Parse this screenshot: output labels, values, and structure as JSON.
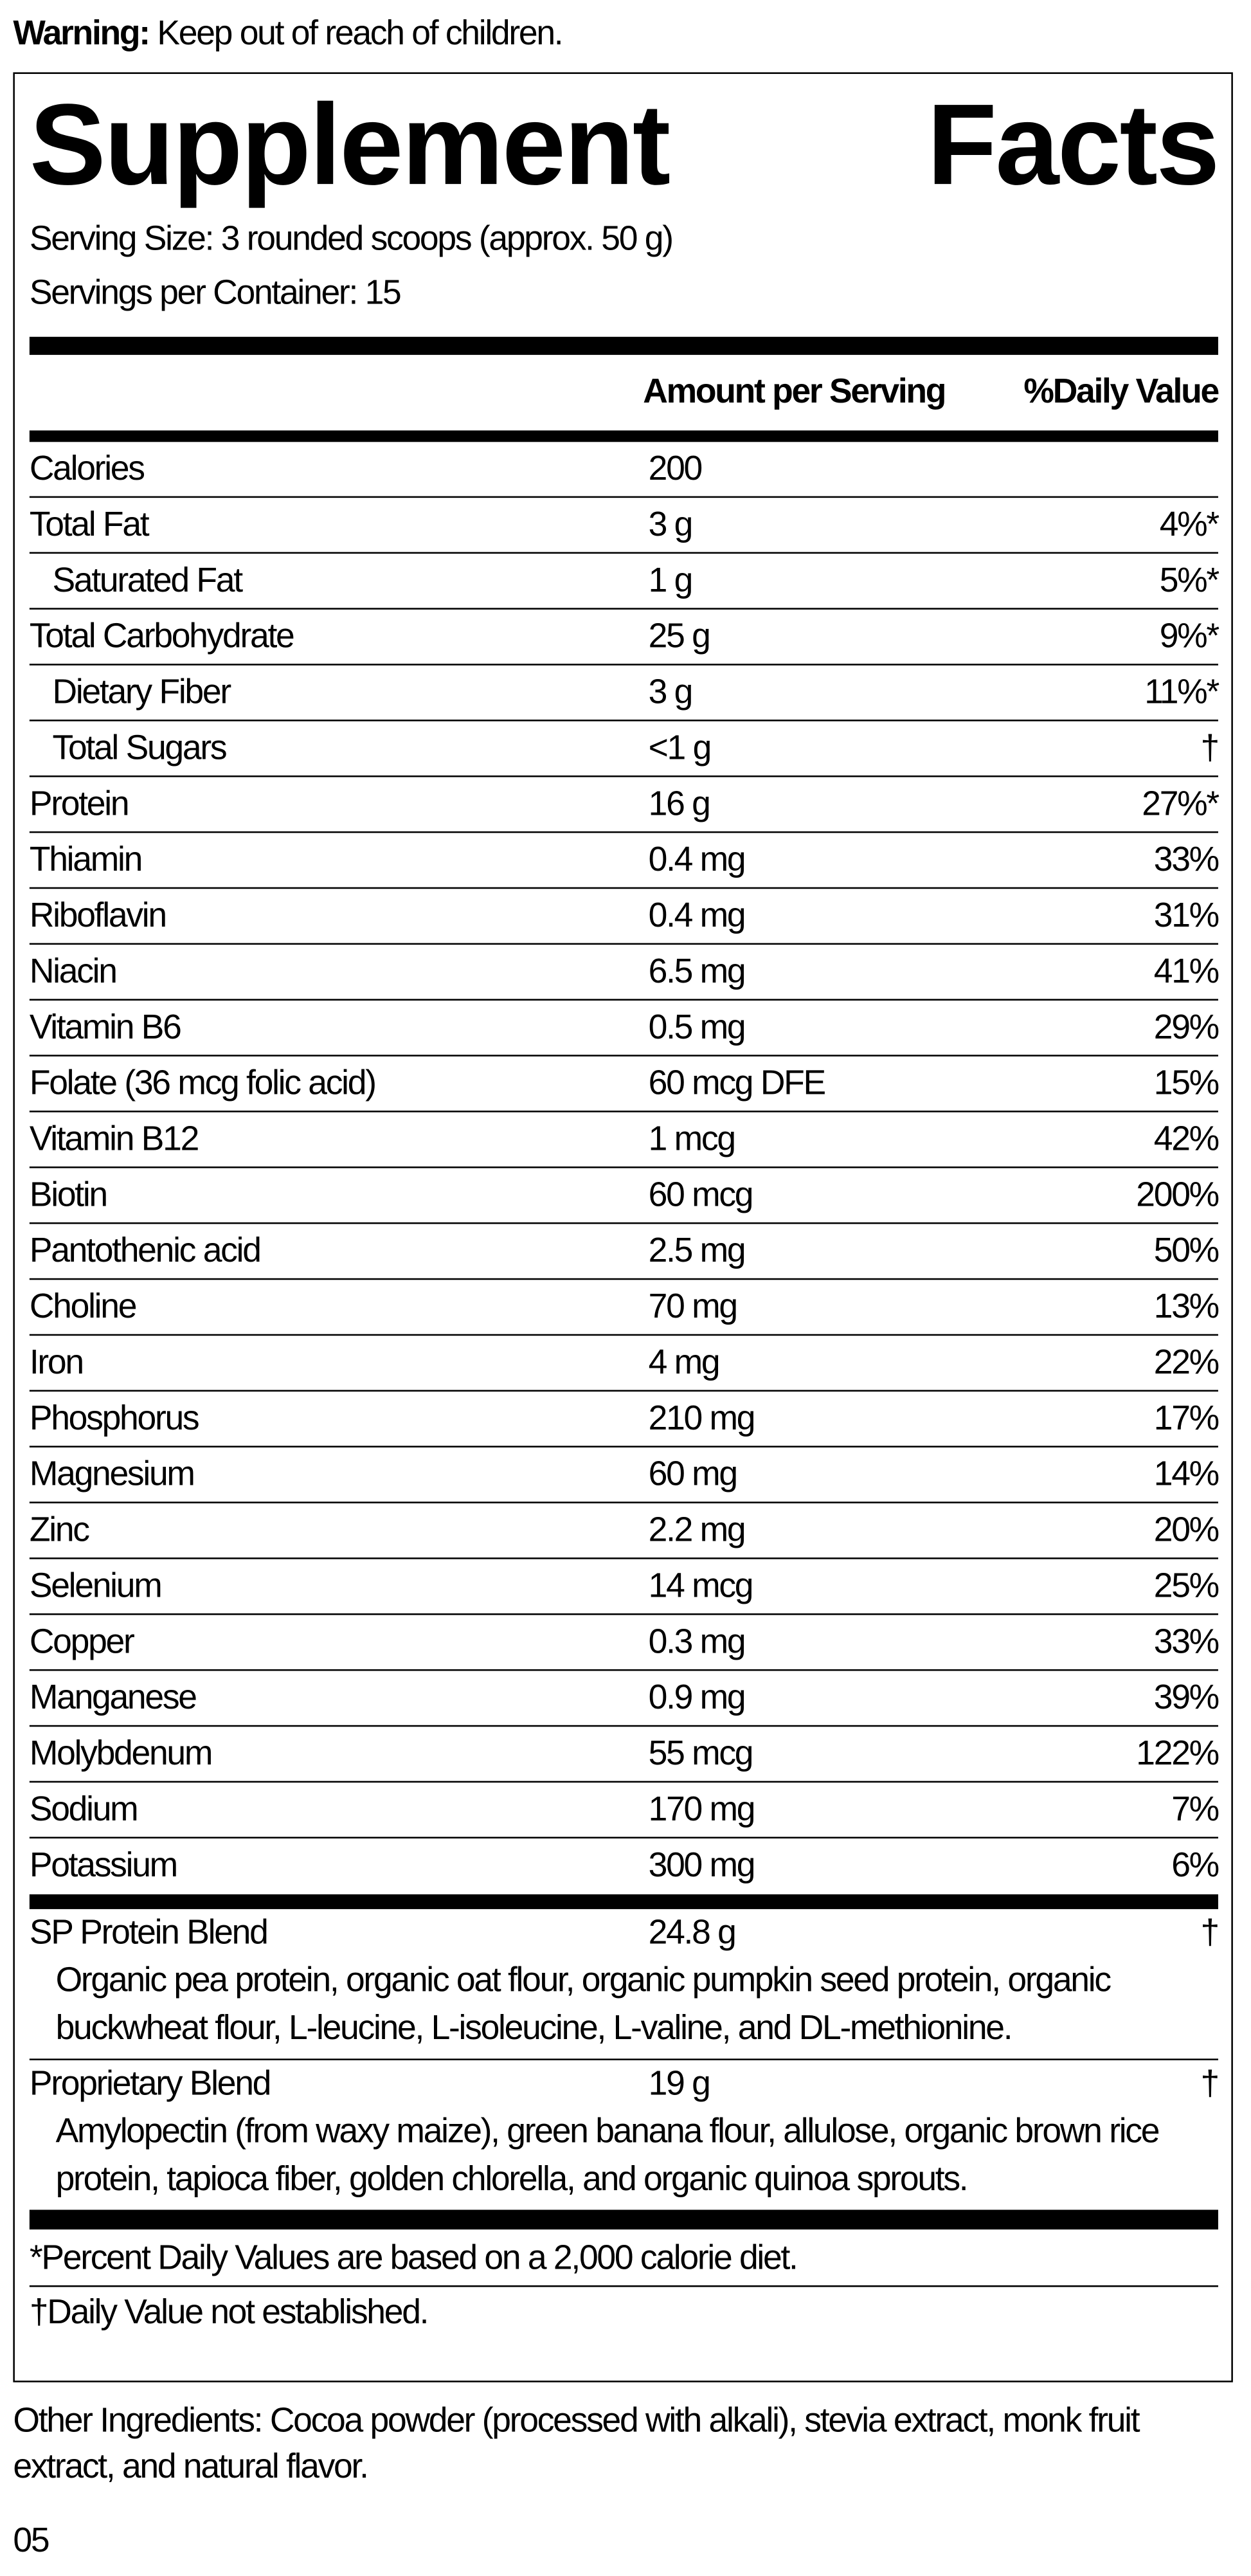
{
  "warning": {
    "label": "Warning:",
    "text": "Keep out of reach of children."
  },
  "title": "Supplement Facts",
  "serving_size": "Serving Size: 3 rounded scoops (approx. 50 g)",
  "servings_per_container": "Servings per Container: 15",
  "header": {
    "amount": "Amount per Serving",
    "daily_value": "%Daily Value"
  },
  "rows": [
    {
      "name": "Calories",
      "amount": "200"
    },
    {
      "name": "Total Fat",
      "amount": "3 g",
      "daily_value": "4%*"
    },
    {
      "name": "Saturated Fat",
      "amount": "1 g",
      "daily_value": "5%*",
      "indent": true
    },
    {
      "name": "Total Carbohydrate",
      "amount": "25 g",
      "daily_value": "9%*"
    },
    {
      "name": "Dietary Fiber",
      "amount": "3 g",
      "daily_value": "11%*",
      "indent": true
    },
    {
      "name": "Total Sugars",
      "amount": "<1 g",
      "daily_value": "†",
      "indent": true
    },
    {
      "name": "Protein",
      "amount": "16 g",
      "daily_value": "27%*"
    },
    {
      "name": "Thiamin",
      "amount": "0.4 mg",
      "daily_value": "33%"
    },
    {
      "name": "Riboflavin",
      "amount": "0.4 mg",
      "daily_value": "31%"
    },
    {
      "name": "Niacin",
      "amount": "6.5 mg",
      "daily_value": "41%"
    },
    {
      "name": "Vitamin B6",
      "amount": "0.5 mg",
      "daily_value": "29%"
    },
    {
      "name": "Folate (36 mcg folic acid)",
      "amount": "60 mcg DFE",
      "daily_value": "15%"
    },
    {
      "name": "Vitamin B12",
      "amount": "1 mcg",
      "daily_value": "42%"
    },
    {
      "name": "Biotin",
      "amount": "60 mcg",
      "daily_value": "200%"
    },
    {
      "name": "Pantothenic acid",
      "amount": "2.5 mg",
      "daily_value": "50%"
    },
    {
      "name": "Choline",
      "amount": "70 mg",
      "daily_value": "13%"
    },
    {
      "name": "Iron",
      "amount": "4 mg",
      "daily_value": "22%"
    },
    {
      "name": "Phosphorus",
      "amount": "210 mg",
      "daily_value": "17%"
    },
    {
      "name": "Magnesium",
      "amount": "60 mg",
      "daily_value": "14%"
    },
    {
      "name": "Zinc",
      "amount": "2.2 mg",
      "daily_value": "20%"
    },
    {
      "name": "Selenium",
      "amount": "14 mcg",
      "daily_value": "25%"
    },
    {
      "name": "Copper",
      "amount": "0.3 mg",
      "daily_value": "33%"
    },
    {
      "name": "Manganese",
      "amount": "0.9 mg",
      "daily_value": "39%"
    },
    {
      "name": "Molybdenum",
      "amount": "55 mcg",
      "daily_value": "122%"
    },
    {
      "name": "Sodium",
      "amount": "170 mg",
      "daily_value": "7%"
    },
    {
      "name": "Potassium",
      "amount": "300 mg",
      "daily_value": "6%"
    }
  ],
  "blends": [
    {
      "name": "SP Protein Blend",
      "amount": "24.8 g",
      "daily_value": "†",
      "ingredients": "Organic pea protein, organic oat flour, organic pumpkin seed protein, organic buckwheat flour, L-leucine, L-isoleucine, L-valine, and DL-methionine."
    },
    {
      "name": "Proprietary Blend",
      "amount": "19 g",
      "daily_value": "†",
      "ingredients": "Amylopectin (from waxy maize), green banana flour, allulose, organic brown rice protein, tapioca fiber, golden chlorella, and organic quinoa sprouts."
    }
  ],
  "footnotes": [
    "*Percent Daily Values are based on a 2,000 calorie diet.",
    "†Daily Value not established."
  ],
  "other_ingredients": "Other Ingredients: Cocoa powder (processed with alkali), stevia extract, monk fruit extract, and natural flavor.",
  "code": "05"
}
